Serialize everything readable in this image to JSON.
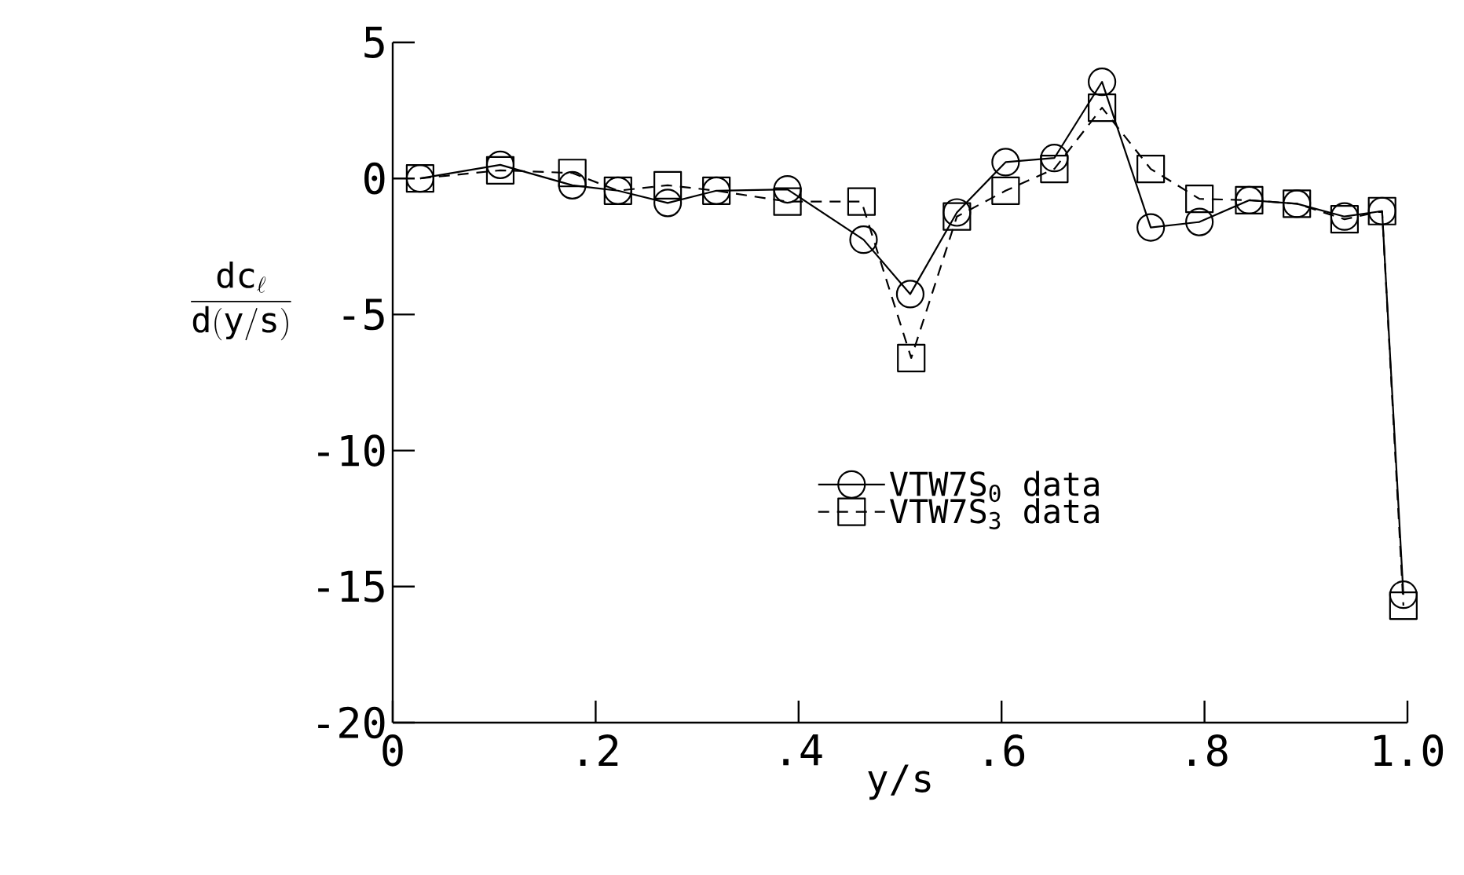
{
  "chart_data": {
    "type": "line",
    "xlabel": "y/s",
    "ylabel": "\\frac{\\mathrm{dc}_{\\ell}}{\\mathrm{d(y/s)}}",
    "xlim": [
      0,
      1
    ],
    "ylim": [
      -20,
      5
    ],
    "xticks": [
      0,
      {
        "value": 0.2,
        "label": ".2"
      },
      {
        "value": 0.4,
        "label": ".4"
      },
      {
        "value": 0.6,
        "label": ".6"
      },
      {
        "value": 0.8,
        "label": ".8"
      },
      {
        "value": 1.0,
        "label": "1.0"
      }
    ],
    "yticks": [
      5,
      0,
      -5,
      -10,
      -15,
      -20
    ],
    "grid": false,
    "legend": "center",
    "x": [
      0.027,
      0.106,
      0.177,
      0.222,
      0.271,
      0.319,
      0.389,
      0.464,
      0.51,
      0.556,
      0.604,
      0.652,
      0.699,
      0.747,
      0.795,
      0.844,
      0.891,
      0.938,
      0.975,
      0.996
    ],
    "series": [
      {
        "name": "VTW7S$_{0}$ data",
        "color": "#000000",
        "marker": "circle",
        "line_style": "solid",
        "values": [
          0,
          0.5,
          -0.25,
          -0.45,
          -0.9,
          -0.45,
          -0.4,
          -2.25,
          -4.25,
          -1.25,
          0.6,
          0.75,
          3.55,
          -1.8,
          -1.6,
          -0.8,
          -0.93,
          -1.4,
          -1.2,
          -15.3
        ]
      },
      {
        "name": "VTW7S$_{3}$ data",
        "color": "#000000",
        "marker": "square",
        "line_style": "dashed",
        "x": [
          0.027,
          0.106,
          0.177,
          0.222,
          0.271,
          0.319,
          0.389,
          0.462,
          0.511,
          0.556,
          0.604,
          0.652,
          0.699,
          0.747,
          0.795,
          0.844,
          0.891,
          0.938,
          0.975,
          0.996
        ],
        "values": [
          0,
          0.3,
          0.2,
          -0.45,
          -0.25,
          -0.45,
          -0.85,
          -0.85,
          -6.6,
          -1.4,
          -0.45,
          0.35,
          2.6,
          0.35,
          -0.75,
          -0.8,
          -0.93,
          -1.5,
          -1.2,
          -15.7
        ]
      }
    ]
  }
}
